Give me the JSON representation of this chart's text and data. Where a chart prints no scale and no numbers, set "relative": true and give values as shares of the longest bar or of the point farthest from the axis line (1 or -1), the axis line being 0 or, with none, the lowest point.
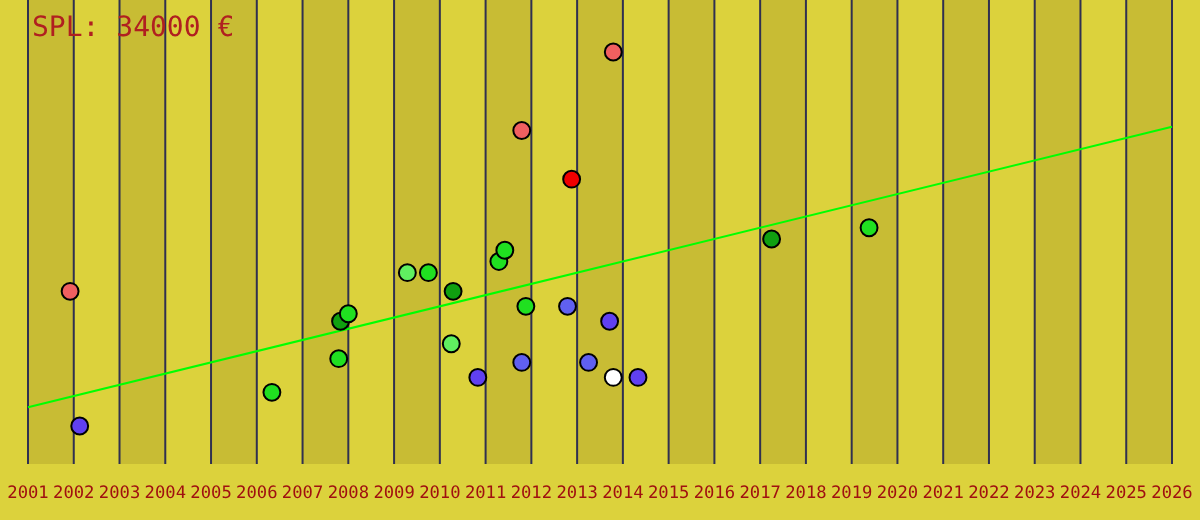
{
  "chart_data": {
    "type": "scatter",
    "title": "SPL: 34000 €",
    "relative": true,
    "xlim": [
      2001,
      2026
    ],
    "xticks": [
      2001,
      2002,
      2003,
      2004,
      2005,
      2006,
      2007,
      2008,
      2009,
      2010,
      2011,
      2012,
      2013,
      2014,
      2015,
      2016,
      2017,
      2018,
      2019,
      2020,
      2021,
      2022,
      2023,
      2024,
      2025,
      2026
    ],
    "grid": "x",
    "bands": [
      {
        "axis": "x",
        "from": 2001,
        "to": 2002,
        "color": "#c8bc34"
      },
      {
        "axis": "x",
        "from": 2003,
        "to": 2004,
        "color": "#c8bc34"
      },
      {
        "axis": "x",
        "from": 2005,
        "to": 2006,
        "color": "#c8bc34"
      },
      {
        "axis": "x",
        "from": 2007,
        "to": 2008,
        "color": "#c8bc34"
      },
      {
        "axis": "x",
        "from": 2009,
        "to": 2010,
        "color": "#c8bc34"
      },
      {
        "axis": "x",
        "from": 2011,
        "to": 2012,
        "color": "#c8bc34"
      },
      {
        "axis": "x",
        "from": 2013,
        "to": 2014,
        "color": "#c8bc34"
      },
      {
        "axis": "x",
        "from": 2015,
        "to": 2016,
        "color": "#c8bc34"
      },
      {
        "axis": "x",
        "from": 2017,
        "to": 2018,
        "color": "#c8bc34"
      },
      {
        "axis": "x",
        "from": 2019,
        "to": 2020,
        "color": "#c8bc34"
      },
      {
        "axis": "x",
        "from": 2021,
        "to": 2022,
        "color": "#c8bc34"
      },
      {
        "axis": "x",
        "from": 2023,
        "to": 2024,
        "color": "#c8bc34"
      },
      {
        "axis": "x",
        "from": 2025,
        "to": 2026,
        "color": "#c8bc34"
      }
    ],
    "series": [
      {
        "marker": "circle",
        "x": [
          2001.92,
          2002.13,
          2006.33,
          2007.79,
          2007.83,
          2008.0,
          2009.29,
          2009.75,
          2010.29,
          2010.25,
          2010.83,
          2011.29,
          2011.42,
          2011.79,
          2011.79,
          2011.88,
          2012.79,
          2012.88,
          2013.25,
          2013.71,
          2013.79,
          2013.79,
          2014.33,
          2017.25,
          2019.38
        ],
        "values": [
          0.36,
          0,
          0.09,
          0.18,
          0.28,
          0.3,
          0.41,
          0.41,
          0.36,
          0.22,
          0.13,
          0.44,
          0.47,
          0.79,
          0.17,
          0.32,
          0.32,
          0.66,
          0.17,
          0.28,
          1,
          0.13,
          0.13,
          0.5,
          0.53
        ],
        "colors": [
          "#f06060",
          "#6040f0",
          "#20e020",
          "#20e020",
          "#10a010",
          "#20e020",
          "#60f060",
          "#20e020",
          "#10a010",
          "#60f060",
          "#6040f0",
          "#20e020",
          "#20e020",
          "#f06060",
          "#6060f0",
          "#20e020",
          "#6060f0",
          "#f00000",
          "#6060f0",
          "#6040f0",
          "#f06060",
          "#ffffff",
          "#6040f0",
          "#10a010",
          "#20e020"
        ]
      },
      {
        "type": "line",
        "color": "#00ff00",
        "x": [
          2001,
          2026
        ],
        "values": [
          0.05,
          0.8
        ]
      }
    ]
  }
}
